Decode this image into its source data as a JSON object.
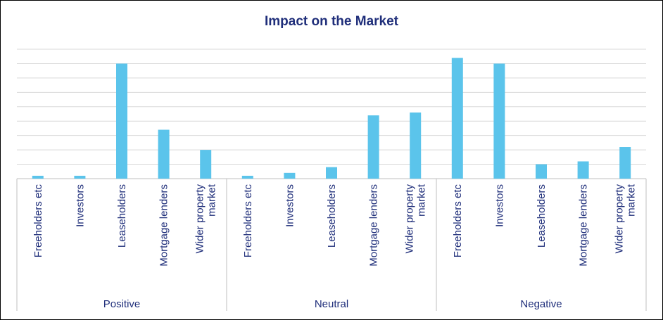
{
  "chart_data": {
    "type": "bar",
    "title": "Impact on the Market",
    "groups": [
      {
        "name": "Positive",
        "categories": [
          "Freeholders etc",
          "Investors",
          "Leaseholders",
          [
            "Mortgage lenders"
          ],
          [
            "Wider property",
            "market"
          ]
        ],
        "values": [
          0.2,
          0.2,
          8.0,
          3.4,
          2.0
        ]
      },
      {
        "name": "Neutral",
        "categories": [
          "Freeholders etc",
          "Investors",
          "Leaseholders",
          [
            "Mortgage lenders"
          ],
          [
            "Wider property",
            "market"
          ]
        ],
        "values": [
          0.2,
          0.4,
          0.8,
          4.4,
          4.6
        ]
      },
      {
        "name": "Negative",
        "categories": [
          "Freeholders etc",
          "Investors",
          "Leaseholders",
          [
            "Mortgage lenders"
          ],
          [
            "Wider property",
            "market"
          ]
        ],
        "values": [
          8.4,
          8.0,
          1.0,
          1.2,
          2.2
        ]
      }
    ],
    "ylim": [
      0,
      9
    ],
    "grid": true,
    "bar_color": "#5bc4eb",
    "grid_color": "#d9d9d9",
    "axis_color": "#bfbfbf",
    "text_color": "#1f2e7a"
  }
}
